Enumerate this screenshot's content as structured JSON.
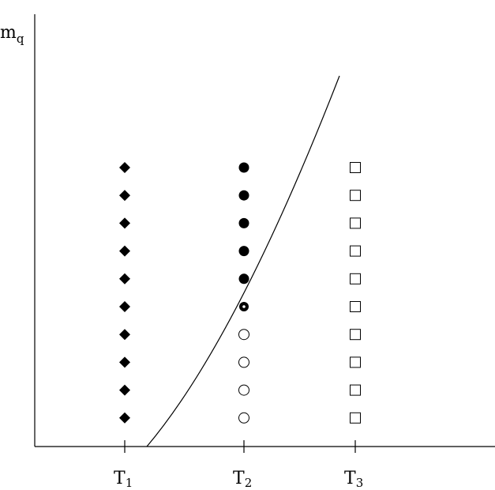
{
  "y_axis_label": {
    "symbol": "m",
    "subscript": "q"
  },
  "x_ticks": [
    {
      "symbol": "T",
      "subscript": "1"
    },
    {
      "symbol": "T",
      "subscript": "2"
    },
    {
      "symbol": "T",
      "subscript": "3"
    }
  ]
}
